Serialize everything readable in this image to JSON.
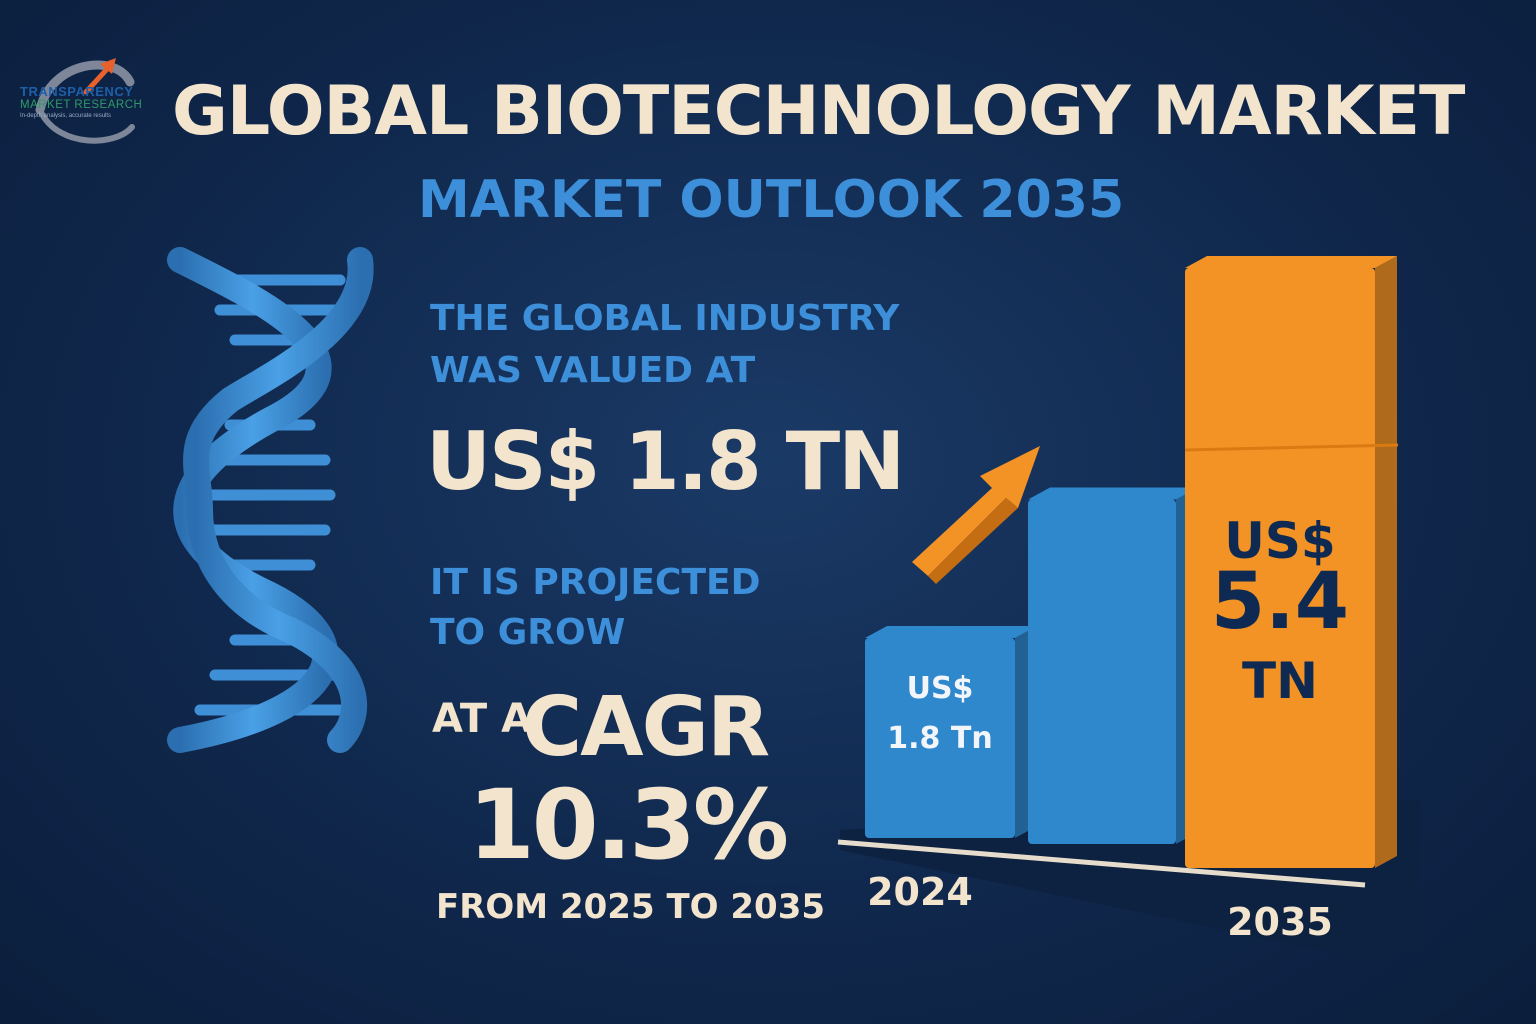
{
  "logo": {
    "line1": "TRANSPARENCY",
    "line2": "MARKET RESEARCH",
    "tagline": "In-depth analysis, accurate results"
  },
  "title": "GLOBAL BIOTECHNOLOGY MARKET",
  "subtitle": "MARKET OUTLOOK  2035",
  "dna_icon": "dna-helix-icon",
  "stats": {
    "valued_line1": "THE GLOBAL INDUSTRY",
    "valued_line2": "WAS VALUED AT",
    "value_2024": "US$ 1.8 TN",
    "projected_line1": "IT IS PROJECTED",
    "projected_line2": "TO GROW",
    "at_a": "AT A",
    "cagr_word": "CAGR",
    "cagr_value": "10.3%",
    "period": "FROM 2025 TO 2035"
  },
  "colors": {
    "background": "#10284d",
    "accent_blue": "#3d8fd9",
    "accent_orange": "#f39325",
    "text_cream": "#f2e4cd"
  },
  "chart_data": {
    "type": "bar",
    "categories": [
      "2024",
      "",
      "2035"
    ],
    "values": [
      1.8,
      3.1,
      5.4
    ],
    "bar_labels": [
      [
        "US$",
        "1.8 Tn"
      ],
      [],
      [
        "US$",
        "5.4",
        "TN"
      ]
    ],
    "bar_colors": [
      "#2f87cc",
      "#2f87cc",
      "#f39325"
    ],
    "axis_labels": [
      "2024",
      "2035"
    ],
    "arrow_icon": "trend-up-arrow-icon",
    "title": "",
    "xlabel": "",
    "ylabel": "",
    "ylim": [
      0,
      5.4
    ]
  }
}
